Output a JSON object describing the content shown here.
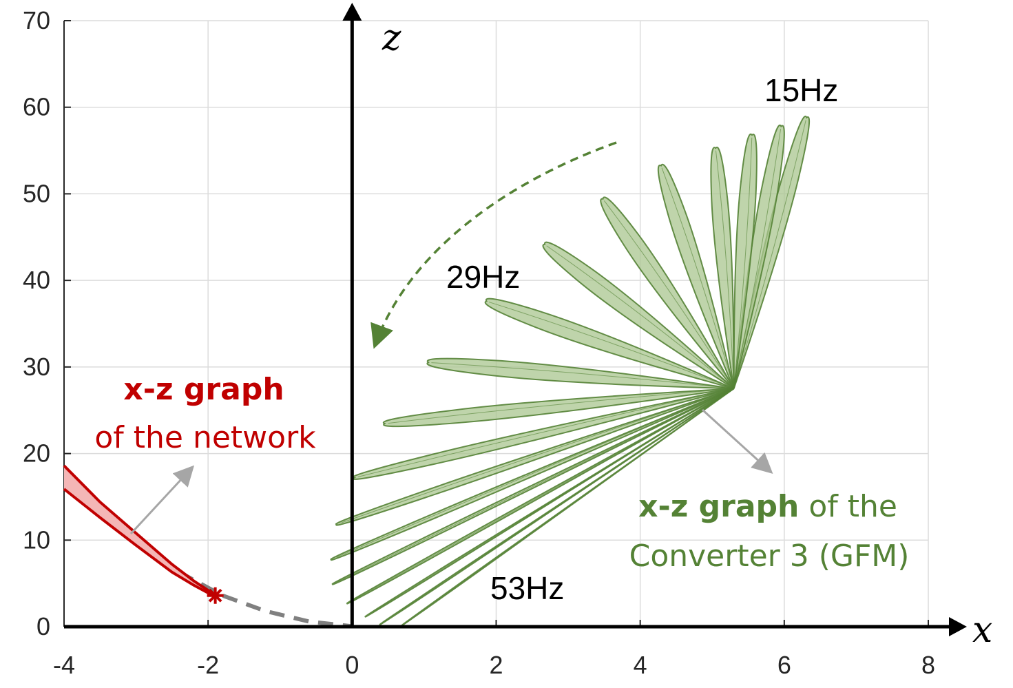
{
  "chart_data": {
    "type": "line",
    "title": "",
    "xlabel": "x",
    "ylabel": "z",
    "xlim": [
      -4,
      8
    ],
    "ylim": [
      0,
      70
    ],
    "xticks": [
      "-4",
      "-2",
      "0",
      "2",
      "4",
      "6",
      "8"
    ],
    "yticks": [
      "0",
      "10",
      "20",
      "30",
      "40",
      "50",
      "60",
      "70"
    ],
    "grid": true,
    "colors": {
      "network": "#c00000",
      "network_fill": "#f4b6b6",
      "converter": "#548235",
      "converter_fill": "#a9c58f",
      "dashed_curve": "#808080",
      "annotation_arrow": "#a6a6a6"
    },
    "annotations": {
      "f15": "15Hz",
      "f29": "29Hz",
      "f53": "53Hz",
      "network_line1_bold": "x-z graph",
      "network_line2": "of the network",
      "converter_line1_bold": "x-z graph",
      "converter_line1_rest": " of the",
      "converter_line2": "Converter 3 (GFM)"
    },
    "network_curve": {
      "upper": [
        [
          -4,
          18.6
        ],
        [
          -3.5,
          14.4
        ],
        [
          -3,
          10.8
        ],
        [
          -2.5,
          7.2
        ],
        [
          -2.2,
          5.3
        ],
        [
          -2.0,
          4.2
        ],
        [
          -1.9,
          3.7
        ]
      ],
      "lower": [
        [
          -4,
          15.9
        ],
        [
          -3.5,
          12.6
        ],
        [
          -3,
          9.4
        ],
        [
          -2.5,
          6.3
        ],
        [
          -2.2,
          4.8
        ],
        [
          -2.0,
          3.9
        ],
        [
          -1.9,
          3.6
        ]
      ],
      "marker": [
        -1.9,
        3.6
      ]
    },
    "dashed_curve": [
      [
        -2.4,
        6.3
      ],
      [
        -1.8,
        3.6
      ],
      [
        -1.2,
        1.8
      ],
      [
        -0.6,
        0.6
      ],
      [
        0,
        0.05
      ]
    ],
    "converter_lobes": [
      {
        "tip": [
          6.3,
          58.5
        ],
        "width": 1.2
      },
      {
        "tip": [
          5.95,
          57.5
        ],
        "width": 1.2
      },
      {
        "tip": [
          5.55,
          56.5
        ],
        "width": 1.2
      },
      {
        "tip": [
          5.05,
          55.0
        ],
        "width": 1.2
      },
      {
        "tip": [
          4.3,
          53.0
        ],
        "width": 1.3
      },
      {
        "tip": [
          3.5,
          49.2
        ],
        "width": 1.35
      },
      {
        "tip": [
          2.7,
          44.0
        ],
        "width": 1.35
      },
      {
        "tip": [
          1.9,
          37.5
        ],
        "width": 1.25
      },
      {
        "tip": [
          1.1,
          30.5
        ],
        "width": 1.15
      },
      {
        "tip": [
          0.5,
          23.5
        ],
        "width": 1.0
      },
      {
        "tip": [
          0.08,
          17.3
        ],
        "width": 0.75
      },
      {
        "tip": [
          -0.15,
          12.0
        ],
        "width": 0.5
      },
      {
        "tip": [
          -0.22,
          8.0
        ],
        "width": 0.35
      },
      {
        "tip": [
          -0.2,
          5.2
        ],
        "width": 0.25
      },
      {
        "tip": [
          0.0,
          3.0
        ],
        "width": 0.2
      },
      {
        "tip": [
          0.25,
          1.5
        ],
        "width": 0.15
      },
      {
        "tip": [
          0.45,
          0.6
        ],
        "width": 0.12
      },
      {
        "tip": [
          0.75,
          0.5
        ],
        "width": 0.1
      }
    ],
    "converter_hub": [
      5.3,
      27.5
    ]
  }
}
